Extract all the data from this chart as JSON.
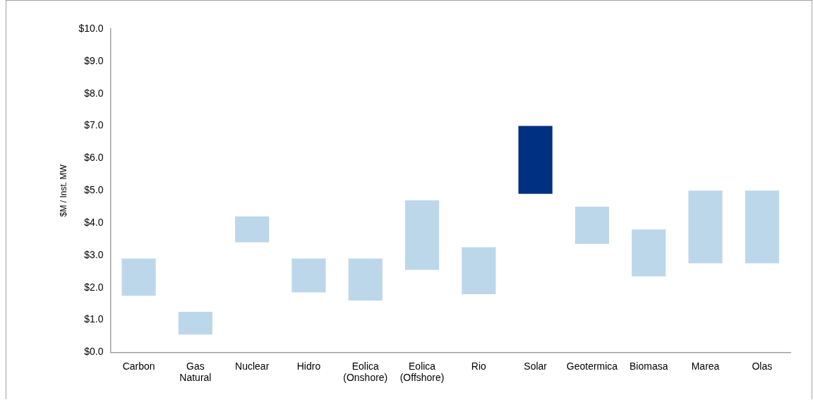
{
  "chart_data": {
    "type": "bar",
    "ylabel": "$M / Inst. MW",
    "categories": [
      "Carbon",
      "Gas\nNatural",
      "Nuclear",
      "Hidro",
      "Eolica\n(Onshore)",
      "Eolica\n(Offshore)",
      "Rio",
      "Solar",
      "Geotermica",
      "Biomasa",
      "Marea",
      "Olas"
    ],
    "base": [
      1.75,
      0.55,
      3.4,
      1.85,
      1.6,
      2.55,
      1.8,
      4.9,
      3.35,
      2.35,
      2.75,
      2.75
    ],
    "values": [
      1.15,
      0.7,
      0.8,
      1.05,
      1.3,
      2.15,
      1.45,
      2.1,
      1.15,
      1.45,
      2.25,
      2.25
    ],
    "colors": [
      "#bdd7ea",
      "#bdd7ea",
      "#bdd7ea",
      "#bdd7ea",
      "#bdd7ea",
      "#bdd7ea",
      "#bdd7ea",
      "#003082",
      "#bdd7ea",
      "#bdd7ea",
      "#bdd7ea",
      "#bdd7ea"
    ],
    "ylim": [
      0,
      10
    ],
    "yticks": [
      {
        "value": 0,
        "label": "$0.0"
      },
      {
        "value": 1,
        "label": "$1.0"
      },
      {
        "value": 2,
        "label": "$2.0"
      },
      {
        "value": 3,
        "label": "$3.0"
      },
      {
        "value": 4,
        "label": "$4.0"
      },
      {
        "value": 5,
        "label": "$5.0"
      },
      {
        "value": 6,
        "label": "$6.0"
      },
      {
        "value": 7,
        "label": "$7.0"
      },
      {
        "value": 8,
        "label": "$8.0"
      },
      {
        "value": 9,
        "label": "$9.0"
      },
      {
        "value": 10,
        "label": "$10.0"
      }
    ],
    "grid": false,
    "legend": false
  }
}
